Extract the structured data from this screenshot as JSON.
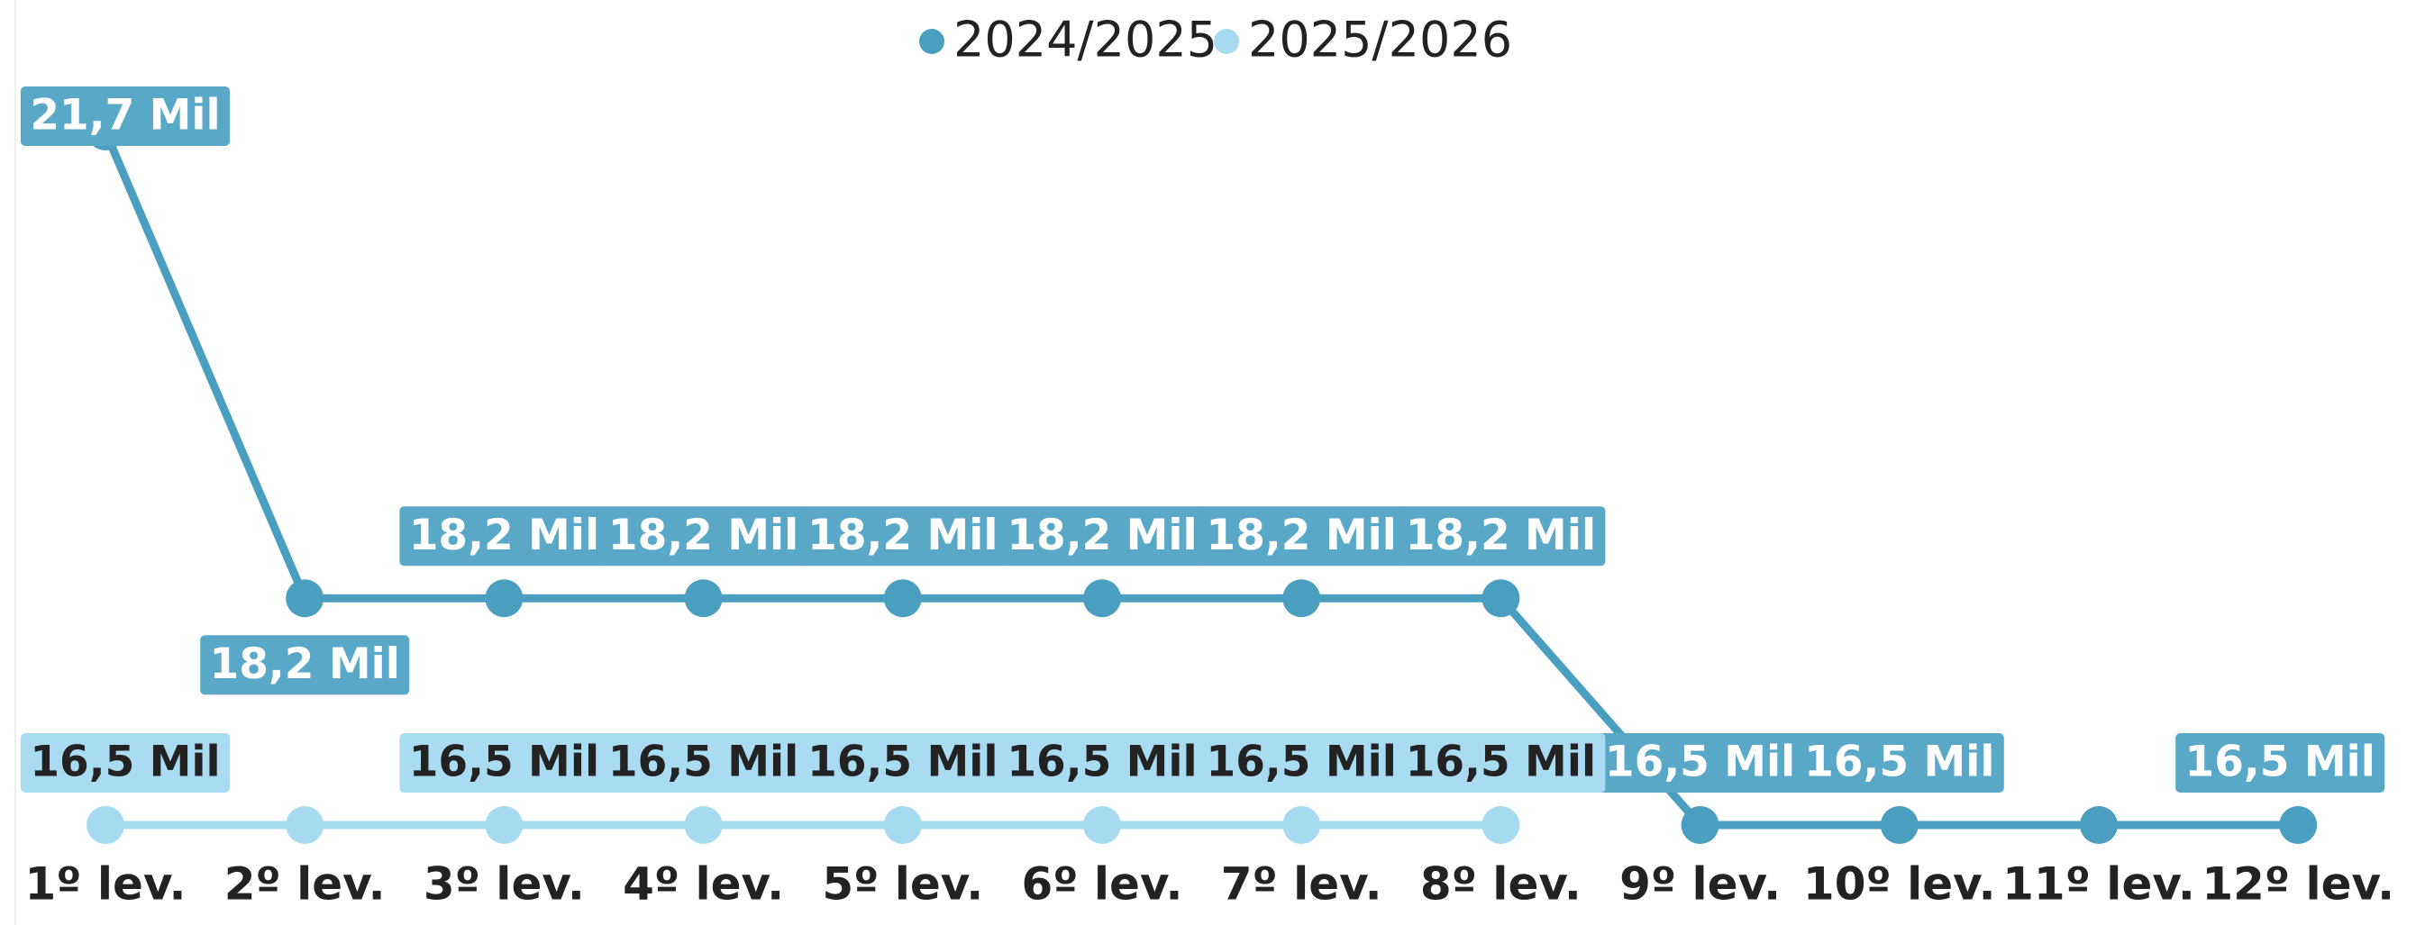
{
  "chart_data": {
    "type": "line",
    "categories": [
      "1º lev.",
      "2º lev.",
      "3º lev.",
      "4º lev.",
      "5º lev.",
      "6º lev.",
      "7º lev.",
      "8º lev.",
      "9º lev.",
      "10º lev.",
      "11º lev.",
      "12º lev."
    ],
    "series": [
      {
        "name": "2024/2025",
        "color": "#4a9fc1",
        "label_color": "#5aa8c8",
        "label_text_color": "#ffffff",
        "values": [
          21.7,
          18.2,
          18.2,
          18.2,
          18.2,
          18.2,
          18.2,
          18.2,
          16.5,
          16.5,
          16.5,
          16.5
        ],
        "value_labels": [
          "21,7 Mil",
          "18,2 Mil",
          "18,2 Mil",
          "18,2 Mil",
          "18,2 Mil",
          "18,2 Mil",
          "18,2 Mil",
          "18,2 Mil",
          "16,5 Mil",
          "16,5 Mil",
          null,
          "16,5 Mil"
        ]
      },
      {
        "name": "2025/2026",
        "color": "#a6daf1",
        "label_color": "#a9dcf2",
        "label_text_color": "#222222",
        "values": [
          16.5,
          16.5,
          16.5,
          16.5,
          16.5,
          16.5,
          16.5,
          16.5,
          null,
          null,
          null,
          null
        ],
        "value_labels": [
          "16,5 Mil",
          null,
          "16,5 Mil",
          "16,5 Mil",
          "16,5 Mil",
          "16,5 Mil",
          "16,5 Mil",
          "16,5 Mil",
          null,
          null,
          null,
          null
        ]
      }
    ],
    "legend": "top"
  }
}
